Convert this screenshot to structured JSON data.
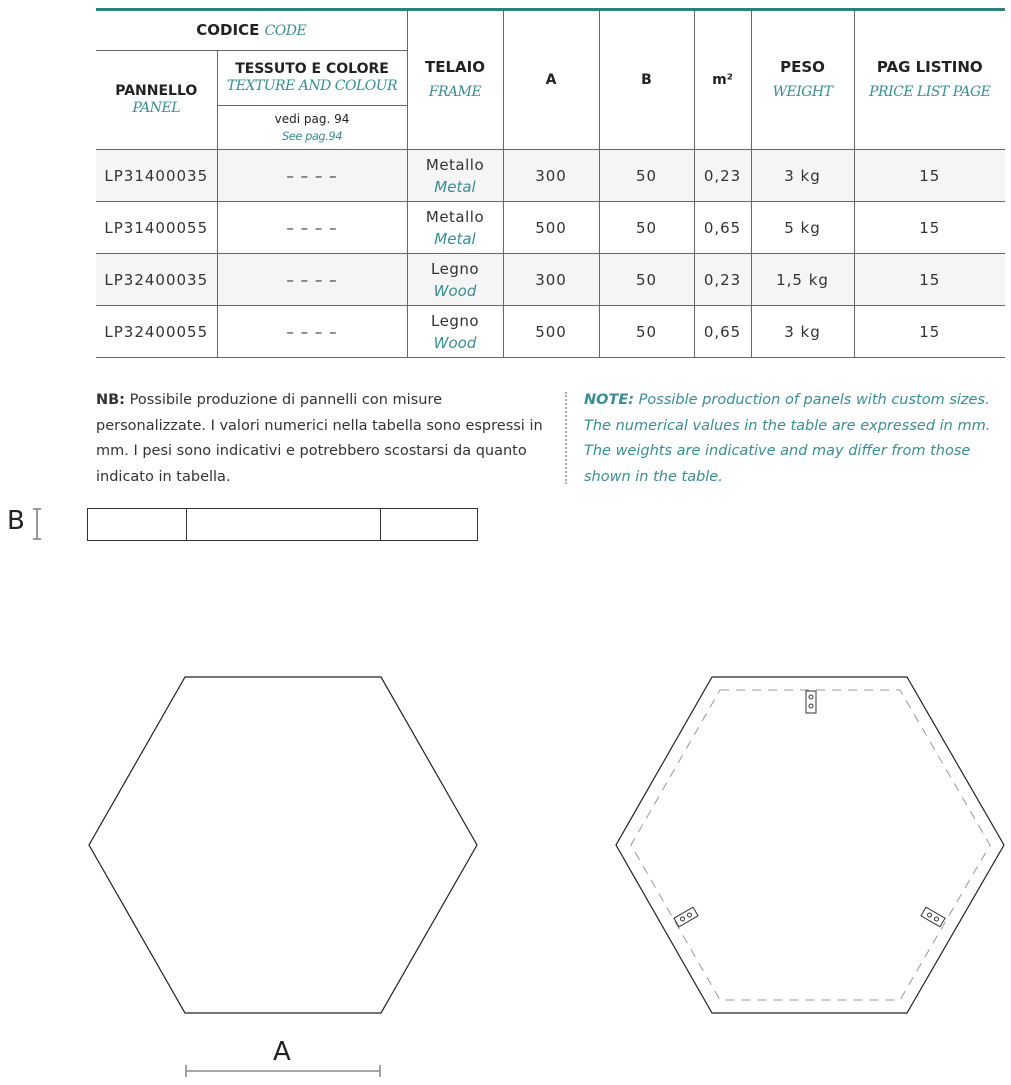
{
  "header": {
    "codice": "CODICE",
    "codice_en": "CODE",
    "pannello": "PANNELLO",
    "pannello_en": "PANEL",
    "tessuto": "TESSUTO E COLORE",
    "tessuto_en": "TEXTURE AND COLOUR",
    "vedi": "vedi pag. 94",
    "vedi_en": "See pag.94",
    "telaio": "TELAIO",
    "telaio_en": "FRAME",
    "a": "A",
    "b": "B",
    "m2": "m²",
    "peso": "PESO",
    "peso_en": "WEIGHT",
    "pag": "PAG LISTINO",
    "pag_en": "PRICE LIST PAGE"
  },
  "rows": [
    {
      "code": "LP31400035",
      "texture": "– – – –",
      "frame": "Metallo",
      "frame_en": "Metal",
      "a": "300",
      "b": "50",
      "m2": "0,23",
      "weight": "3 kg",
      "page": "15"
    },
    {
      "code": "LP31400055",
      "texture": "– – – –",
      "frame": "Metallo",
      "frame_en": "Metal",
      "a": "500",
      "b": "50",
      "m2": "0,65",
      "weight": "5 kg",
      "page": "15"
    },
    {
      "code": "LP32400035",
      "texture": "– – – –",
      "frame": "Legno",
      "frame_en": "Wood",
      "a": "300",
      "b": "50",
      "m2": "0,23",
      "weight": "1,5 kg",
      "page": "15"
    },
    {
      "code": "LP32400055",
      "texture": "– – – –",
      "frame": "Legno",
      "frame_en": "Wood",
      "a": "500",
      "b": "50",
      "m2": "0,65",
      "weight": "3 kg",
      "page": "15"
    }
  ],
  "notes": {
    "it_label": "NB:",
    "it_text": " Possibile produzione di pannelli con misure personalizzate. I valori numerici nella tabella sono espressi in mm. I pesi sono indicativi e potrebbero scostarsi da quanto indicato in tabella.",
    "en_label": "NOTE:",
    "en_text": " Possible production of panels with custom sizes. The numerical values in the table are expressed in mm. The weights are indicative and may differ from those shown in the table."
  },
  "drawing": {
    "label_a": "A",
    "label_b": "B"
  },
  "colors": {
    "accent": "#3a8d92",
    "rule": "#2f7f7c"
  }
}
